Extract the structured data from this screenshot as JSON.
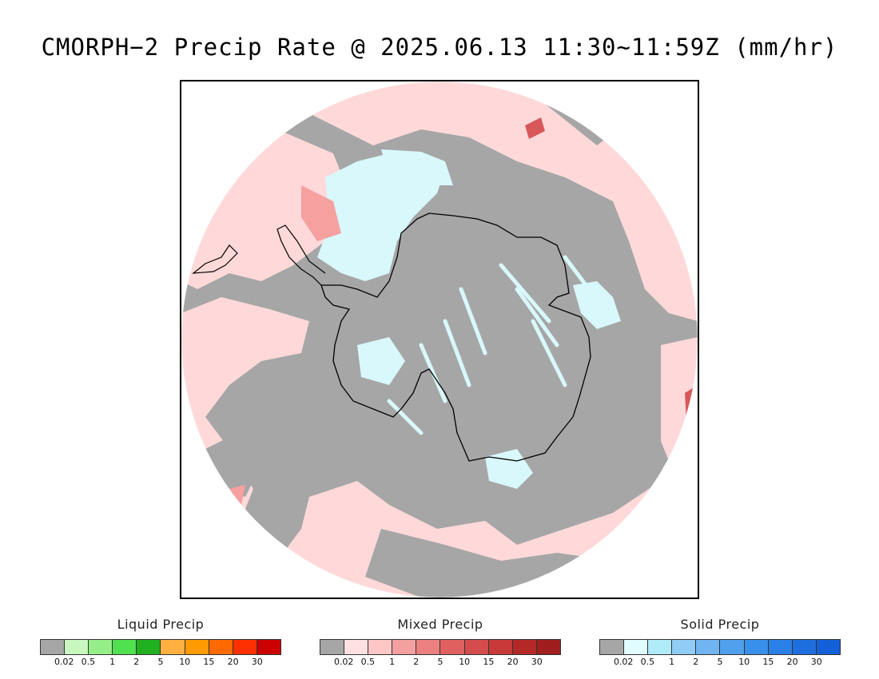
{
  "title": "CMORPH−2 Precip Rate @ 2025.06.13 11:30~11:59Z (mm/hr)",
  "map": {
    "projection": "south-polar-stereographic",
    "continent": "Antarctica",
    "colors": {
      "no_precip": "#a6a6a6",
      "mixed_light": "#ffd9d9",
      "solid_light": "#d8f8fb",
      "mixed_moderate": "#f6a0a0",
      "mixed_heavy": "#d8585a",
      "liquid_light": "#b8f0b0",
      "coastline": "#000000",
      "outside": "#ffffff"
    }
  },
  "legends": [
    {
      "id": "liquid",
      "title": "Liquid Precip",
      "colors": [
        "#a6a6a6",
        "#c8f8c0",
        "#96ee88",
        "#50e050",
        "#20b020",
        "#ffb040",
        "#ff9a00",
        "#ff6a00",
        "#ff3000",
        "#cc0000"
      ],
      "ticks": [
        "0.02",
        "0.5",
        "1",
        "2",
        "5",
        "10",
        "15",
        "20",
        "30"
      ]
    },
    {
      "id": "mixed",
      "title": "Mixed Precip",
      "colors": [
        "#a6a6a6",
        "#ffe0e0",
        "#ffc6c6",
        "#f4a0a0",
        "#ec8080",
        "#e06060",
        "#d44c4c",
        "#c83a3a",
        "#b42828",
        "#a01e1e"
      ],
      "ticks": [
        "0.02",
        "0.5",
        "1",
        "2",
        "5",
        "10",
        "15",
        "20",
        "30"
      ]
    },
    {
      "id": "solid",
      "title": "Solid Precip",
      "colors": [
        "#a6a6a6",
        "#e0fcff",
        "#b0ecf8",
        "#90ccf6",
        "#70b4f2",
        "#50a0ee",
        "#3890ea",
        "#2a80e6",
        "#1e6ee0",
        "#1460d8"
      ],
      "ticks": [
        "0.02",
        "0.5",
        "1",
        "2",
        "5",
        "10",
        "15",
        "20",
        "30"
      ]
    }
  ]
}
